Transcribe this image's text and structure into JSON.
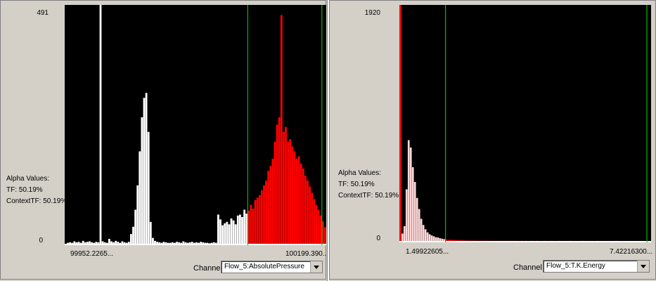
{
  "colors": {
    "background": "#d4d0c8",
    "plot_background": "#000000",
    "tf_white": "#ffffff",
    "tf_red": "#ff0000",
    "marker_green": "#00c000"
  },
  "panels": [
    {
      "y_max": "491",
      "y_min": "0",
      "alpha_title": "Alpha Values:",
      "tf_text": "TF: 50.19%",
      "context_tf_text": "ContextTF: 50.19%",
      "x_min": "99952.2265...",
      "x_max": "100199.390...",
      "channel_label": "Channel",
      "channel_value": "Flow_5:AbsolutePressure"
    },
    {
      "y_max": "1920",
      "y_min": "0",
      "alpha_title": "Alpha Values:",
      "tf_text": "TF: 50.19%",
      "context_tf_text": "ContextTF: 50.19%",
      "x_min": "1.49922605...",
      "x_max": "7.42216300...",
      "channel_label": "Channel",
      "channel_value": "Flow_5:T.K.Energy"
    }
  ],
  "chart_data": [
    {
      "type": "histogram",
      "ylim": [
        0,
        491
      ],
      "x_tick_labels": [
        "99952.2265...",
        "100199.390..."
      ],
      "bins": 120,
      "values": [
        0,
        2,
        3,
        2,
        5,
        3,
        4,
        2,
        6,
        3,
        4,
        5,
        3,
        2,
        4,
        3,
        491,
        5,
        3,
        2,
        10,
        5,
        3,
        6,
        4,
        2,
        5,
        3,
        2,
        4,
        20,
        35,
        70,
        120,
        190,
        260,
        300,
        310,
        230,
        45,
        12,
        6,
        4,
        3,
        2,
        4,
        3,
        2,
        2,
        3,
        2,
        4,
        3,
        2,
        5,
        3,
        2,
        3,
        4,
        2,
        3,
        2,
        4,
        3,
        2,
        2,
        1,
        2,
        3,
        2,
        60,
        50,
        38,
        42,
        45,
        40,
        52,
        48,
        40,
        58,
        60,
        55,
        70,
        62,
        68,
        80,
        72,
        90,
        95,
        100,
        110,
        120,
        130,
        150,
        160,
        175,
        210,
        245,
        260,
        470,
        230,
        240,
        210,
        215,
        200,
        190,
        175,
        180,
        165,
        155,
        140,
        130,
        118,
        105,
        92,
        80,
        70,
        58,
        46,
        34
      ],
      "tf_red_start_bin": 84,
      "markers": [
        {
          "label": "left",
          "bin": 84
        },
        {
          "label": "right",
          "bin": 118
        }
      ]
    },
    {
      "type": "histogram",
      "ylim": [
        0,
        1920
      ],
      "x_tick_labels": [
        "1.49922605...",
        "7.42216300..."
      ],
      "bins": 120,
      "values": [
        1920,
        60,
        120,
        420,
        820,
        760,
        600,
        480,
        350,
        260,
        180,
        130,
        95,
        70,
        55,
        45,
        38,
        30,
        28,
        22,
        18,
        15,
        12,
        10,
        9,
        8,
        7,
        6,
        6,
        5,
        5,
        4,
        4,
        3,
        3,
        3,
        2,
        2,
        2,
        2,
        2,
        2,
        1,
        1,
        1,
        1,
        1,
        1,
        1,
        1,
        1,
        1,
        1,
        1,
        1,
        1,
        1,
        0,
        1,
        0,
        1,
        0,
        0,
        1,
        0,
        1,
        0,
        0,
        0,
        1,
        0,
        0,
        1,
        0,
        0,
        0,
        1,
        0,
        0,
        0,
        0,
        1,
        0,
        0,
        0,
        0,
        0,
        1,
        0,
        0,
        0,
        0,
        0,
        0,
        1,
        0,
        0,
        0,
        0,
        0,
        0,
        0,
        0,
        1,
        0,
        0,
        0,
        0,
        0,
        0,
        0,
        0,
        0,
        0,
        0,
        0,
        0,
        0,
        0,
        0
      ],
      "markers": [
        {
          "label": "left",
          "bin": 22
        },
        {
          "label": "right",
          "bin": 118
        }
      ]
    }
  ]
}
